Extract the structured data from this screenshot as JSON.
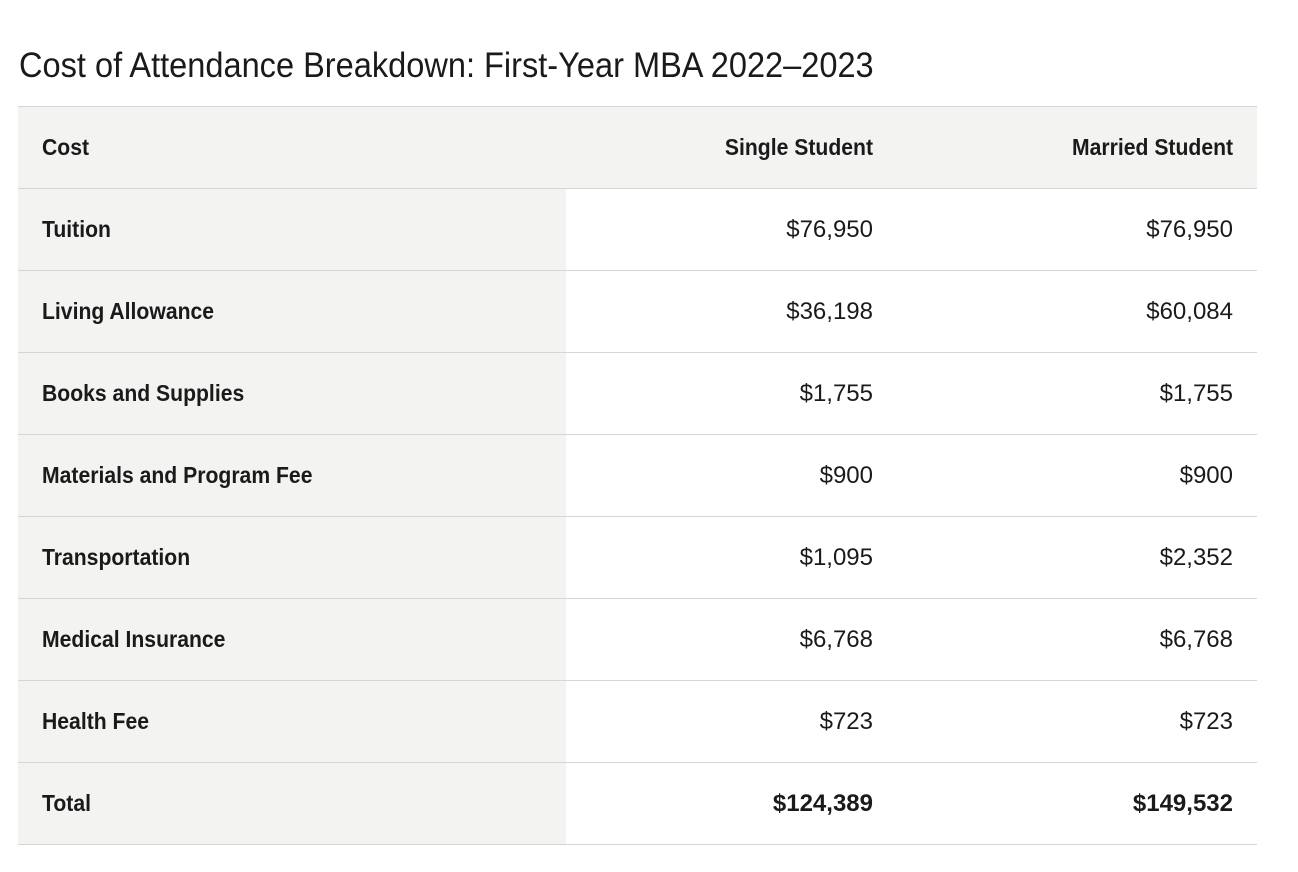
{
  "title": "Cost of Attendance Breakdown: First-Year MBA 2022–2023",
  "table": {
    "headers": [
      "Cost",
      "Single Student",
      "Married Student"
    ],
    "rows": [
      {
        "label": "Tuition",
        "single": "$76,950",
        "married": "$76,950"
      },
      {
        "label": "Living Allowance",
        "single": "$36,198",
        "married": "$60,084"
      },
      {
        "label": "Books and Supplies",
        "single": "$1,755",
        "married": "$1,755"
      },
      {
        "label": "Materials and Program Fee",
        "single": "$900",
        "married": "$900"
      },
      {
        "label": "Transportation",
        "single": "$1,095",
        "married": "$2,352"
      },
      {
        "label": "Medical Insurance",
        "single": "$6,768",
        "married": "$6,768"
      },
      {
        "label": "Health Fee",
        "single": "$723",
        "married": "$723"
      },
      {
        "label": "Total",
        "single": "$124,389",
        "married": "$149,532"
      }
    ]
  }
}
